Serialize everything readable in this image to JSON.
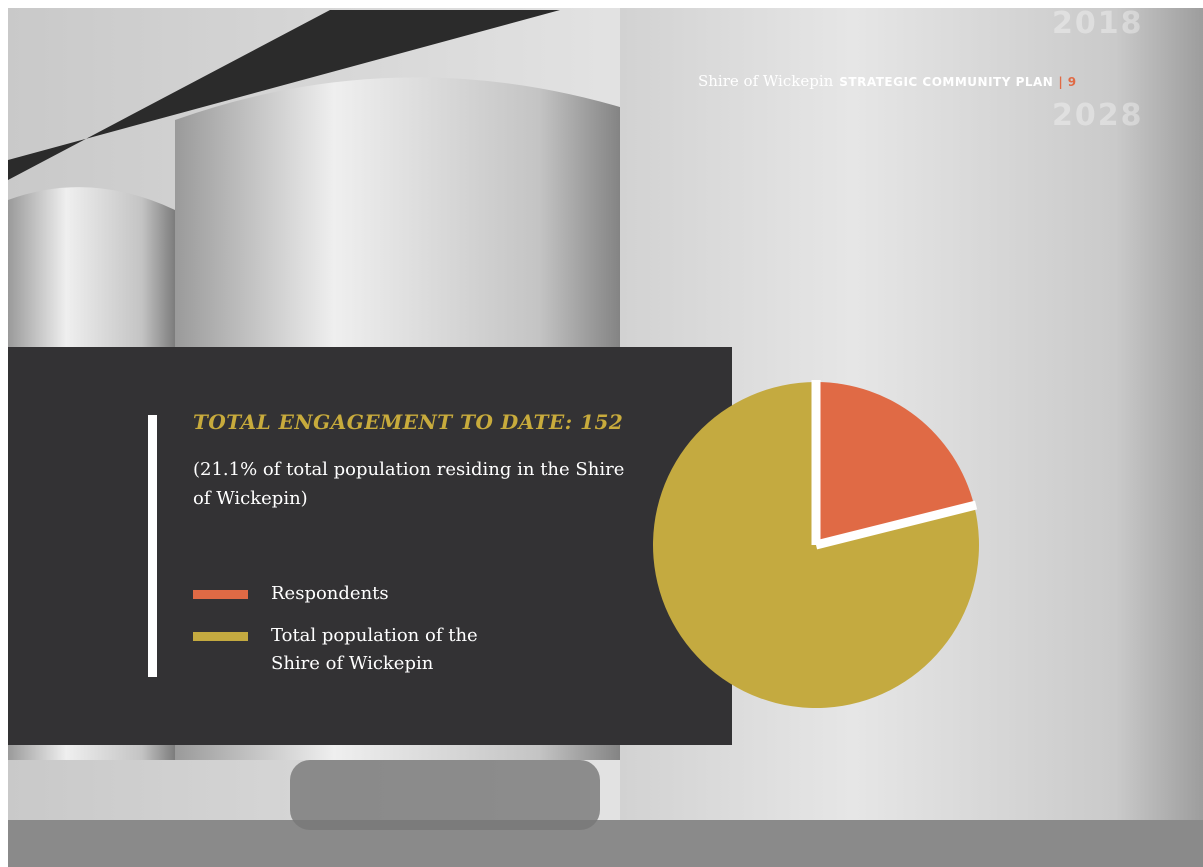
{
  "header": {
    "shire": "Shire of Wickepin",
    "plan": "STRATEGIC COMMUNITY PLAN",
    "separator": "|",
    "page": "9",
    "year_start": "2018",
    "year_end": "2028"
  },
  "chart_data": {
    "type": "pie",
    "title": "TOTAL ENGAGEMENT TO DATE: 152",
    "subtitle": "(21.1% of total population residing in the Shire of Wickepin)",
    "categories": [
      "Respondents",
      "Total population of the Shire of Wickepin"
    ],
    "values": [
      21.1,
      78.9
    ],
    "colors": [
      "#e06a45",
      "#c4aa40"
    ]
  }
}
